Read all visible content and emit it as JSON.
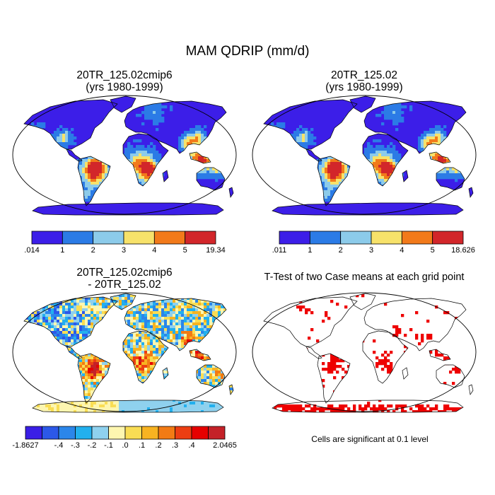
{
  "title": "MAM QDRIP (mm/d)",
  "panels": {
    "a": {
      "title_line1": "20TR_125.02cmip6",
      "title_line2": "(yrs 1980-1999)"
    },
    "b": {
      "title_line1": "20TR_125.02",
      "title_line2": "(yrs 1980-1999)"
    },
    "c": {
      "title_line1": "20TR_125.02cmip6",
      "title_line2": "- 20TR_125.02"
    },
    "d": {
      "title_line1": "T-Test of two Case means at each grid point",
      "footnote": "Cells are significant at 0.1 level"
    }
  },
  "colorbars": {
    "a": {
      "labels": [
        ".014",
        "1",
        "2",
        "3",
        "4",
        "5",
        "19.34"
      ],
      "colors": [
        "#3c1ee8",
        "#2b7be6",
        "#8ccbea",
        "#f7e26a",
        "#f27a1a",
        "#d2262a"
      ]
    },
    "b": {
      "labels": [
        ".011",
        "1",
        "2",
        "3",
        "4",
        "5",
        "18.626"
      ],
      "colors": [
        "#3c1ee8",
        "#2b7be6",
        "#8ccbea",
        "#f7e26a",
        "#f27a1a",
        "#d2262a"
      ]
    },
    "c": {
      "labels": [
        "-1.8627",
        "-.4",
        "-.3",
        "-.2",
        "-.1",
        ".0",
        ".1",
        ".2",
        ".3",
        ".4",
        "2.0465"
      ],
      "colors": [
        "#3a1ee6",
        "#2c58e8",
        "#2b86ea",
        "#22b0ee",
        "#8fd1ee",
        "#fdf6b0",
        "#f9dd54",
        "#f7b321",
        "#f27b14",
        "#ec3e12",
        "#e60000",
        "#c42128"
      ]
    }
  },
  "legend_colors": {
    "ocean": "#ffffff",
    "significant": "#ee0000",
    "coast": "#000000"
  }
}
